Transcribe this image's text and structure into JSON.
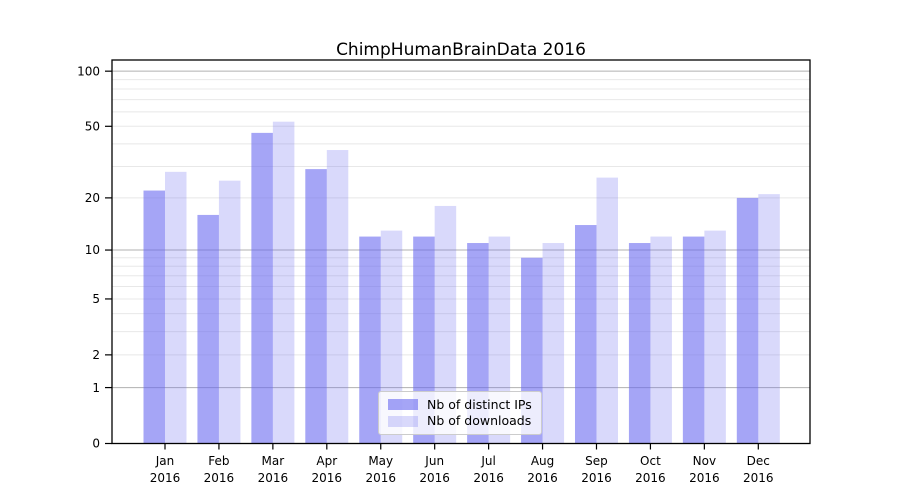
{
  "chart_data": {
    "type": "bar",
    "title": "ChimpHumanBrainData 2016",
    "categories": [
      "Jan",
      "Feb",
      "Mar",
      "Apr",
      "May",
      "Jun",
      "Jul",
      "Aug",
      "Sep",
      "Oct",
      "Nov",
      "Dec"
    ],
    "category_year": "2016",
    "series": [
      {
        "name": "Nb of distinct IPs",
        "color": "rgba(105,105,240,0.6)",
        "color_hex": "#a5a5f5",
        "values": [
          22,
          16,
          46,
          29,
          12,
          12,
          11,
          9,
          14,
          11,
          12,
          20
        ]
      },
      {
        "name": "Nb of downloads",
        "color": "rgba(105,105,240,0.25)",
        "color_hex": "#dcdcfb",
        "values": [
          28,
          25,
          53,
          37,
          13,
          18,
          12,
          11,
          26,
          12,
          13,
          21
        ]
      }
    ],
    "xlabel": "",
    "ylabel": "",
    "yscale": "log1p",
    "ylim": [
      0,
      115
    ],
    "y_ticks": [
      100,
      50,
      20,
      10,
      5,
      2,
      1,
      0
    ],
    "y_major_gridlines": [
      1,
      10,
      100
    ],
    "y_minor_gridlines": [
      2,
      3,
      4,
      5,
      6,
      7,
      8,
      9,
      20,
      30,
      40,
      50,
      60,
      70,
      80,
      90
    ],
    "grid": true,
    "legend_position": "lower center",
    "colors": {
      "major_gridline": "#b0b0b0",
      "minor_gridline": "#e8e8e8",
      "axis_frame": "#000000"
    }
  }
}
